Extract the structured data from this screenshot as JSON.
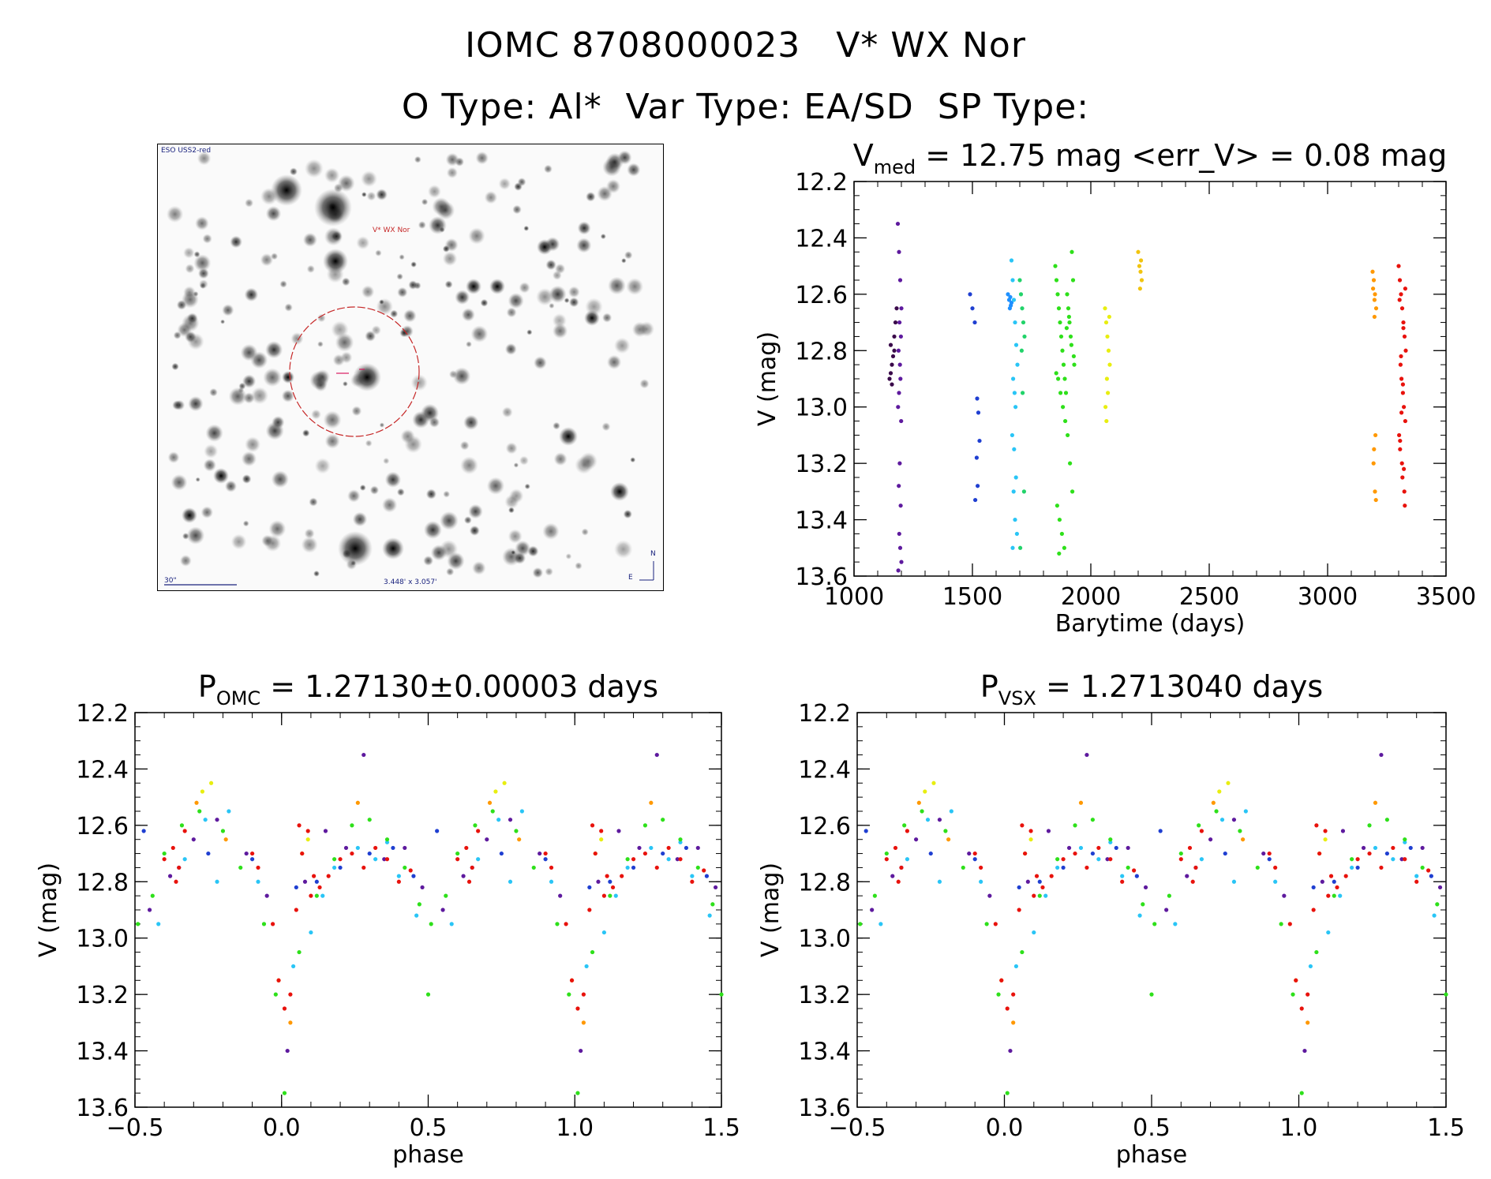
{
  "header": {
    "title": "IOMC 8708000023   V* WX Nor",
    "subtitle": "O Type: Al*  Var Type: EA/SD  SP Type:"
  },
  "finder": {
    "survey_label": "ESO USS2-red",
    "target_label": "V* WX Nor",
    "scale_label": "30\"",
    "size_label": "3.448' x 3.057'",
    "north_label": "N",
    "east_label": "E"
  },
  "colors": {
    "axis": "#000000",
    "finder_circle": "#c62828",
    "finder_marker": "#d81b60"
  },
  "chart_data": [
    {
      "id": "lightcurve",
      "type": "scatter",
      "title_prefix": "V",
      "title_sub": "med",
      "title_rest": " = 12.75 mag <err_V> = 0.08 mag",
      "xlabel": "Barytime (days)",
      "ylabel": "V (mag)",
      "xlim": [
        1000,
        3500
      ],
      "ylim": [
        12.2,
        13.6
      ],
      "y_inverted": true,
      "xticks": [
        1000,
        1500,
        2000,
        2500,
        3000,
        3500
      ],
      "yticks": [
        12.2,
        12.4,
        12.6,
        12.8,
        13.0,
        13.2,
        13.4,
        13.6
      ],
      "xtick_labels": [
        "1000",
        "1500",
        "2000",
        "2500",
        "3000",
        "3500"
      ],
      "ytick_labels": [
        "12.2",
        "12.4",
        "12.6",
        "12.8",
        "13.0",
        "13.2",
        "13.4",
        "13.6"
      ],
      "series": [
        {
          "name": "epoch-1a",
          "color": "#3a0a4a",
          "x": [
            1150,
            1155,
            1160,
            1165,
            1170,
            1175,
            1180,
            1160,
            1170,
            1155
          ],
          "y": [
            12.9,
            12.88,
            12.85,
            12.82,
            12.75,
            12.7,
            12.65,
            12.92,
            12.8,
            12.78
          ]
        },
        {
          "name": "epoch-1b",
          "color": "#5e1a9e",
          "x": [
            1185,
            1190,
            1195,
            1200,
            1192,
            1198,
            1188,
            1194,
            1196,
            1190,
            1186,
            1199,
            1193,
            1189,
            1197,
            1191,
            1195,
            1200,
            1187
          ],
          "y": [
            12.35,
            12.45,
            12.55,
            12.65,
            12.7,
            12.75,
            12.8,
            12.85,
            12.9,
            12.95,
            13.0,
            13.05,
            13.2,
            13.28,
            13.35,
            13.45,
            13.5,
            13.55,
            13.58
          ]
        },
        {
          "name": "epoch-2",
          "color": "#1f3fd1",
          "x": [
            1490,
            1500,
            1510,
            1520,
            1525,
            1530,
            1518,
            1522,
            1512
          ],
          "y": [
            12.6,
            12.65,
            12.7,
            12.97,
            13.02,
            13.12,
            13.18,
            13.28,
            13.33
          ]
        },
        {
          "name": "epoch-3",
          "color": "#1e90ff",
          "x": [
            1650,
            1655,
            1660,
            1665,
            1658,
            1662
          ],
          "y": [
            12.6,
            12.62,
            12.61,
            12.63,
            12.65,
            12.64
          ]
        },
        {
          "name": "epoch-4",
          "color": "#29c5f6",
          "x": [
            1665,
            1670,
            1675,
            1680,
            1685,
            1690,
            1672,
            1678,
            1682,
            1668,
            1676,
            1684,
            1674,
            1680,
            1688,
            1670
          ],
          "y": [
            12.48,
            12.55,
            12.62,
            12.7,
            12.78,
            12.85,
            12.9,
            12.95,
            13.0,
            13.1,
            13.15,
            13.25,
            13.3,
            13.4,
            13.45,
            13.5
          ]
        },
        {
          "name": "epoch-5",
          "color": "#22d36a",
          "x": [
            1700,
            1705,
            1710,
            1715,
            1720,
            1708,
            1712,
            1718,
            1702
          ],
          "y": [
            12.55,
            12.6,
            12.65,
            12.7,
            12.75,
            12.8,
            12.95,
            13.3,
            13.5
          ]
        },
        {
          "name": "epoch-6",
          "color": "#2ee01a",
          "x": [
            1850,
            1855,
            1860,
            1865,
            1870,
            1875,
            1880,
            1885,
            1890,
            1895,
            1900,
            1905,
            1910,
            1915,
            1920,
            1925,
            1930,
            1862,
            1872,
            1882,
            1892,
            1902,
            1912,
            1922,
            1858,
            1868,
            1878,
            1888,
            1898,
            1908,
            1918,
            1928,
            1854,
            1866
          ],
          "y": [
            12.5,
            12.55,
            12.6,
            12.65,
            12.7,
            12.75,
            12.8,
            12.85,
            12.9,
            12.95,
            12.6,
            12.65,
            12.7,
            12.75,
            12.45,
            12.55,
            12.85,
            12.9,
            12.95,
            13.0,
            13.05,
            13.1,
            13.2,
            13.3,
            13.35,
            13.4,
            13.45,
            13.5,
            12.72,
            12.68,
            12.78,
            12.82,
            12.88,
            13.52
          ]
        },
        {
          "name": "epoch-7",
          "color": "#e8ee10",
          "x": [
            2060,
            2065,
            2070,
            2075,
            2080,
            2068,
            2072,
            2062,
            2078,
            2066
          ],
          "y": [
            12.65,
            12.7,
            12.75,
            12.8,
            12.85,
            12.9,
            12.95,
            13.0,
            12.68,
            13.05
          ]
        },
        {
          "name": "epoch-8",
          "color": "#f1c40f",
          "x": [
            2200,
            2205,
            2210,
            2215,
            2208,
            2212
          ],
          "y": [
            12.45,
            12.5,
            12.52,
            12.55,
            12.58,
            12.48
          ]
        },
        {
          "name": "epoch-9",
          "color": "#ff9800",
          "x": [
            3190,
            3195,
            3200,
            3205,
            3198,
            3202,
            3196,
            3194,
            3200,
            3204,
            3192,
            3198
          ],
          "y": [
            12.52,
            12.55,
            12.6,
            12.65,
            12.68,
            13.1,
            13.15,
            13.2,
            13.3,
            13.33,
            12.58,
            12.62
          ]
        },
        {
          "name": "epoch-10",
          "color": "#e8120c",
          "x": [
            3300,
            3305,
            3310,
            3315,
            3320,
            3325,
            3330,
            3308,
            3312,
            3318,
            3322,
            3328,
            3302,
            3306,
            3314,
            3316,
            3324,
            3326,
            3304,
            3320,
            3310,
            3318,
            3312,
            3306,
            3328,
            3322
          ],
          "y": [
            12.5,
            12.55,
            12.6,
            12.65,
            12.7,
            12.75,
            12.8,
            12.85,
            12.9,
            12.95,
            13.0,
            13.05,
            13.1,
            13.15,
            13.2,
            13.25,
            13.3,
            13.35,
            12.62,
            12.72,
            12.82,
            12.92,
            13.02,
            13.12,
            12.58,
            13.22
          ]
        }
      ]
    },
    {
      "id": "phase-omc",
      "type": "scatter",
      "title_prefix": "P",
      "title_sub": "OMC",
      "title_rest": " = 1.27130±0.00003 days",
      "xlabel": "phase",
      "ylabel": "V (mag)",
      "xlim": [
        -0.5,
        1.5
      ],
      "ylim": [
        12.2,
        13.6
      ],
      "y_inverted": true,
      "xticks": [
        -0.5,
        0.0,
        0.5,
        1.0,
        1.5
      ],
      "yticks": [
        12.2,
        12.4,
        12.6,
        12.8,
        13.0,
        13.2,
        13.4,
        13.6
      ],
      "xtick_labels": [
        "−0.5",
        "0.0",
        "0.5",
        "1.0",
        "1.5"
      ],
      "ytick_labels": [
        "12.2",
        "12.4",
        "12.6",
        "12.8",
        "13.0",
        "13.2",
        "13.4",
        "13.6"
      ],
      "phase_series": [
        {
          "name": "ph-purple",
          "color": "#5e1a9e",
          "x": [
            -0.45,
            -0.38,
            -0.3,
            -0.22,
            -0.12,
            -0.05,
            0.02,
            0.08,
            0.15,
            0.22,
            0.28,
            0.35,
            0.42,
            0.48
          ],
          "y": [
            12.9,
            12.78,
            12.65,
            12.58,
            12.7,
            12.85,
            13.4,
            12.8,
            12.62,
            12.68,
            12.35,
            12.72,
            12.68,
            12.82
          ]
        },
        {
          "name": "ph-blue",
          "color": "#1f3fd1",
          "x": [
            -0.47,
            -0.35,
            -0.25,
            -0.1,
            0.05,
            0.12,
            0.2,
            0.3,
            0.38,
            0.45
          ],
          "y": [
            12.62,
            12.75,
            12.7,
            12.72,
            12.82,
            12.8,
            12.75,
            12.7,
            12.68,
            12.78
          ]
        },
        {
          "name": "ph-cyan",
          "color": "#29c5f6",
          "x": [
            -0.42,
            -0.33,
            -0.26,
            -0.18,
            -0.08,
            0.04,
            0.1,
            0.18,
            0.26,
            0.32,
            0.4,
            0.46,
            -0.22,
            0.14,
            0.36
          ],
          "y": [
            12.95,
            12.72,
            12.58,
            12.55,
            12.8,
            13.1,
            12.98,
            12.75,
            12.68,
            12.72,
            12.78,
            12.92,
            12.8,
            12.85,
            12.66
          ]
        },
        {
          "name": "ph-green",
          "color": "#2ee01a",
          "x": [
            -0.49,
            -0.44,
            -0.4,
            -0.34,
            -0.28,
            -0.2,
            -0.14,
            -0.06,
            -0.02,
            0.01,
            0.06,
            0.12,
            0.18,
            0.24,
            0.3,
            0.36,
            0.42,
            0.47,
            0.5
          ],
          "y": [
            12.95,
            12.85,
            12.7,
            12.6,
            12.55,
            12.62,
            12.75,
            12.95,
            13.2,
            13.55,
            13.05,
            12.85,
            12.72,
            12.6,
            12.58,
            12.65,
            12.75,
            12.88,
            13.2
          ]
        },
        {
          "name": "ph-yellow",
          "color": "#e8ee10",
          "x": [
            -0.27,
            -0.24,
            0.07,
            0.09
          ],
          "y": [
            12.48,
            12.45,
            12.7,
            12.65
          ]
        },
        {
          "name": "ph-orange",
          "color": "#ff9800",
          "x": [
            -0.29,
            -0.19,
            -0.01,
            0.03,
            0.26
          ],
          "y": [
            12.52,
            12.65,
            13.15,
            13.3,
            12.52
          ]
        },
        {
          "name": "ph-red",
          "color": "#e8120c",
          "x": [
            -0.4,
            -0.37,
            -0.35,
            -0.33,
            -0.1,
            -0.08,
            -0.03,
            -0.01,
            0.01,
            0.03,
            0.05,
            0.07,
            0.09,
            0.11,
            0.13,
            0.16,
            0.2,
            0.24,
            0.28,
            0.32,
            0.36,
            0.4,
            0.44,
            -0.36,
            0.06,
            0.1
          ],
          "y": [
            12.72,
            12.68,
            12.75,
            12.62,
            12.7,
            12.75,
            12.95,
            13.15,
            13.25,
            13.2,
            12.9,
            12.7,
            12.62,
            12.78,
            12.82,
            12.78,
            12.72,
            12.7,
            12.75,
            12.68,
            12.72,
            12.8,
            12.76,
            12.8,
            12.6,
            12.85
          ]
        }
      ]
    },
    {
      "id": "phase-vsx",
      "type": "scatter",
      "title_prefix": "P",
      "title_sub": "VSX",
      "title_rest": " = 1.2713040 days",
      "xlabel": "phase",
      "ylabel": "V (mag)",
      "xlim": [
        -0.5,
        1.5
      ],
      "ylim": [
        12.2,
        13.6
      ],
      "y_inverted": true,
      "xticks": [
        -0.5,
        0.0,
        0.5,
        1.0,
        1.5
      ],
      "yticks": [
        12.2,
        12.4,
        12.6,
        12.8,
        13.0,
        13.2,
        13.4,
        13.6
      ],
      "xtick_labels": [
        "−0.5",
        "0.0",
        "0.5",
        "1.0",
        "1.5"
      ],
      "ytick_labels": [
        "12.2",
        "12.4",
        "12.6",
        "12.8",
        "13.0",
        "13.2",
        "13.4",
        "13.6"
      ],
      "phase_series": [
        {
          "name": "ph-purple",
          "color": "#5e1a9e",
          "x": [
            -0.45,
            -0.38,
            -0.3,
            -0.22,
            -0.12,
            -0.05,
            0.02,
            0.08,
            0.15,
            0.22,
            0.28,
            0.35,
            0.42,
            0.48
          ],
          "y": [
            12.9,
            12.78,
            12.65,
            12.58,
            12.7,
            12.85,
            13.4,
            12.8,
            12.62,
            12.68,
            12.35,
            12.72,
            12.68,
            12.82
          ]
        },
        {
          "name": "ph-blue",
          "color": "#1f3fd1",
          "x": [
            -0.47,
            -0.35,
            -0.25,
            -0.1,
            0.05,
            0.12,
            0.2,
            0.3,
            0.38,
            0.45
          ],
          "y": [
            12.62,
            12.75,
            12.7,
            12.72,
            12.82,
            12.8,
            12.75,
            12.7,
            12.68,
            12.78
          ]
        },
        {
          "name": "ph-cyan",
          "color": "#29c5f6",
          "x": [
            -0.42,
            -0.33,
            -0.26,
            -0.18,
            -0.08,
            0.04,
            0.1,
            0.18,
            0.26,
            0.32,
            0.4,
            0.46,
            -0.22,
            0.14,
            0.36
          ],
          "y": [
            12.95,
            12.72,
            12.58,
            12.55,
            12.8,
            13.1,
            12.98,
            12.75,
            12.68,
            12.72,
            12.78,
            12.92,
            12.8,
            12.85,
            12.66
          ]
        },
        {
          "name": "ph-green",
          "color": "#2ee01a",
          "x": [
            -0.49,
            -0.44,
            -0.4,
            -0.34,
            -0.28,
            -0.2,
            -0.14,
            -0.06,
            -0.02,
            0.01,
            0.06,
            0.12,
            0.18,
            0.24,
            0.3,
            0.36,
            0.42,
            0.47,
            0.5
          ],
          "y": [
            12.95,
            12.85,
            12.7,
            12.6,
            12.55,
            12.62,
            12.75,
            12.95,
            13.2,
            13.55,
            13.05,
            12.85,
            12.72,
            12.6,
            12.58,
            12.65,
            12.75,
            12.88,
            13.2
          ]
        },
        {
          "name": "ph-yellow",
          "color": "#e8ee10",
          "x": [
            -0.27,
            -0.24,
            0.07,
            0.09
          ],
          "y": [
            12.48,
            12.45,
            12.7,
            12.65
          ]
        },
        {
          "name": "ph-orange",
          "color": "#ff9800",
          "x": [
            -0.29,
            -0.19,
            -0.01,
            0.03,
            0.26
          ],
          "y": [
            12.52,
            12.65,
            13.15,
            13.3,
            12.52
          ]
        },
        {
          "name": "ph-red",
          "color": "#e8120c",
          "x": [
            -0.4,
            -0.37,
            -0.35,
            -0.33,
            -0.1,
            -0.08,
            -0.03,
            -0.01,
            0.01,
            0.03,
            0.05,
            0.07,
            0.09,
            0.11,
            0.13,
            0.16,
            0.2,
            0.24,
            0.28,
            0.32,
            0.36,
            0.4,
            0.44,
            -0.36,
            0.06,
            0.1
          ],
          "y": [
            12.72,
            12.68,
            12.75,
            12.62,
            12.7,
            12.75,
            12.95,
            13.15,
            13.25,
            13.2,
            12.9,
            12.7,
            12.62,
            12.78,
            12.82,
            12.78,
            12.72,
            12.7,
            12.75,
            12.68,
            12.72,
            12.8,
            12.76,
            12.8,
            12.6,
            12.85
          ]
        }
      ]
    }
  ]
}
